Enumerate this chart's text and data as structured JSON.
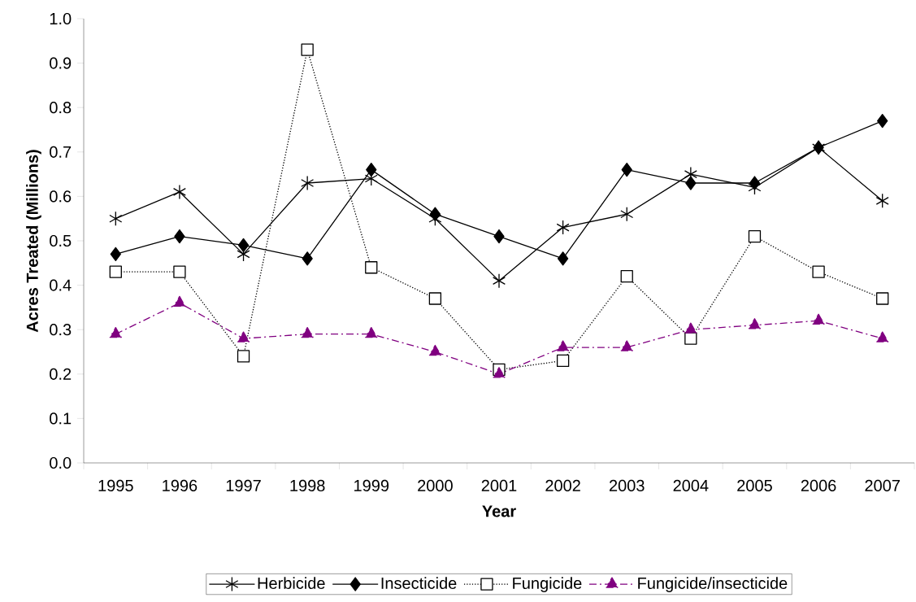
{
  "chart_data": {
    "type": "line",
    "xlabel": "Year",
    "ylabel": "Acres Treated (Millions)",
    "categories": [
      "1995",
      "1996",
      "1997",
      "1998",
      "1999",
      "2000",
      "2001",
      "2002",
      "2003",
      "2004",
      "2005",
      "2006",
      "2007"
    ],
    "series": [
      {
        "name": "Herbicide",
        "color": "#000000",
        "marker": "cross",
        "line_style": "solid",
        "values": [
          0.55,
          0.61,
          0.47,
          0.63,
          0.64,
          0.55,
          0.41,
          0.53,
          0.56,
          0.65,
          0.62,
          0.71,
          0.59
        ]
      },
      {
        "name": "Insecticide",
        "color": "#000000",
        "marker": "diamond",
        "line_style": "solid",
        "values": [
          0.47,
          0.51,
          0.49,
          0.46,
          0.66,
          0.56,
          0.51,
          0.46,
          0.66,
          0.63,
          0.63,
          0.71,
          0.77
        ]
      },
      {
        "name": "Fungicide",
        "color": "#000000",
        "marker": "square",
        "line_style": "dotted",
        "values": [
          0.43,
          0.43,
          0.24,
          0.93,
          0.44,
          0.37,
          0.21,
          0.23,
          0.42,
          0.28,
          0.51,
          0.43,
          0.37
        ]
      },
      {
        "name": "Fungicide/insecticide",
        "color": "#800080",
        "marker": "triangle",
        "line_style": "dashed",
        "values": [
          0.29,
          0.36,
          0.28,
          0.29,
          0.29,
          0.25,
          0.2,
          0.26,
          0.26,
          0.3,
          0.31,
          0.32,
          0.28
        ]
      }
    ],
    "ylim": [
      0,
      1
    ],
    "yticks": [
      {
        "value": 0,
        "label": "0.0"
      },
      {
        "value": 0.1,
        "label": "0.1"
      },
      {
        "value": 0.2,
        "label": "0.2"
      },
      {
        "value": 0.3,
        "label": "0.3"
      },
      {
        "value": 0.4,
        "label": "0.4"
      },
      {
        "value": 0.5,
        "label": "0.5"
      },
      {
        "value": 0.6,
        "label": "0.6"
      },
      {
        "value": 0.7,
        "label": "0.7"
      },
      {
        "value": 0.8,
        "label": "0.8"
      },
      {
        "value": 0.9,
        "label": "0.9"
      },
      {
        "value": 1,
        "label": "1.0"
      }
    ],
    "grid": false,
    "legend": "bottom"
  }
}
